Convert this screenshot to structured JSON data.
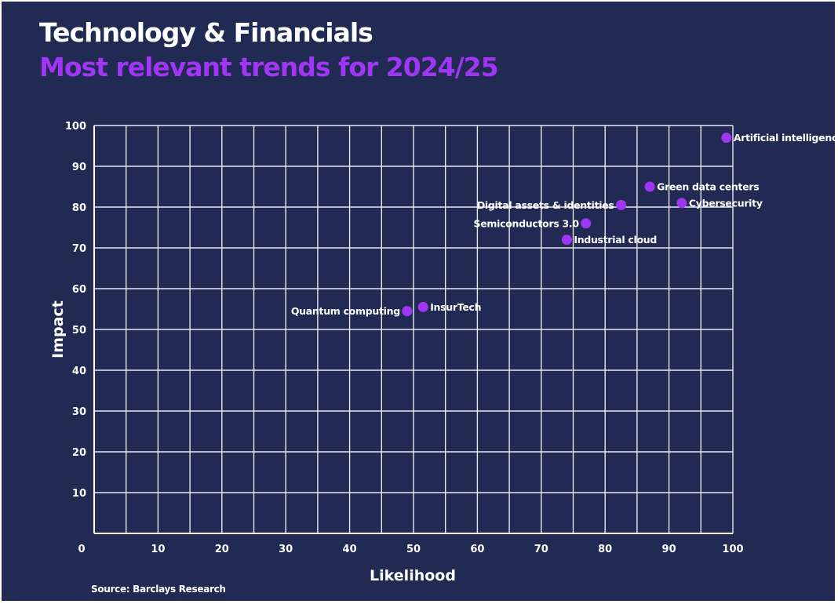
{
  "header": {
    "title": "Technology & Financials",
    "subtitle": "Most relevant trends for 2024/25"
  },
  "footer": {
    "source": "Source: Barclays Research"
  },
  "colors": {
    "background": "#212a52",
    "accent": "#a135f5",
    "grid": "#e6e8ef",
    "text": "#ffffff"
  },
  "chart_data": {
    "type": "scatter",
    "xlabel": "Likelihood",
    "ylabel": "Impact",
    "xlim": [
      0,
      100
    ],
    "ylim": [
      0,
      100
    ],
    "xticks": [
      0,
      10,
      20,
      30,
      40,
      50,
      60,
      70,
      80,
      90,
      100
    ],
    "yticks": [
      10,
      20,
      30,
      40,
      50,
      60,
      70,
      80,
      90,
      100
    ],
    "grid": true,
    "points": [
      {
        "label": "Artificial intelligence",
        "x": 99,
        "y": 97,
        "label_side": "right"
      },
      {
        "label": "Green data centers",
        "x": 87,
        "y": 85,
        "label_side": "right"
      },
      {
        "label": "Cybersecurity",
        "x": 92,
        "y": 81,
        "label_side": "right"
      },
      {
        "label": "Digital assets & identities",
        "x": 82.5,
        "y": 80.5,
        "label_side": "left"
      },
      {
        "label": "Semiconductors 3.0",
        "x": 77,
        "y": 76,
        "label_side": "left"
      },
      {
        "label": "Industrial cloud",
        "x": 74,
        "y": 72,
        "label_side": "right"
      },
      {
        "label": "InsurTech",
        "x": 51.5,
        "y": 55.5,
        "label_side": "right"
      },
      {
        "label": "Quantum computing",
        "x": 49,
        "y": 54.5,
        "label_side": "left"
      }
    ]
  }
}
